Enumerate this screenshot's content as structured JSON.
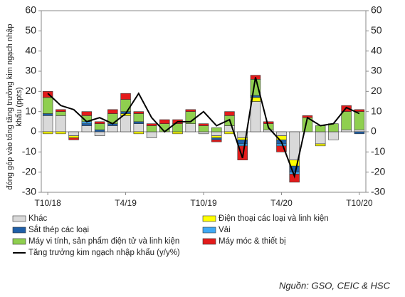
{
  "chart_data": {
    "type": "stacked_bar_line",
    "ylabel": [
      "đóng góp vào tổng tăng trưởng kim ngạch nhập",
      "khẩu (ppts)"
    ],
    "categories": [
      "T10/18",
      null,
      null,
      null,
      null,
      null,
      "T4/19",
      null,
      null,
      null,
      null,
      null,
      "T10/19",
      null,
      null,
      null,
      null,
      null,
      "T4/20",
      null,
      null,
      null,
      null,
      null,
      "T10/20"
    ],
    "series": [
      {
        "name": "Khác",
        "color": "#d9d9d9",
        "values": [
          8,
          8,
          -2,
          3,
          -2,
          3,
          8,
          4,
          -3,
          0,
          0,
          4,
          -1,
          -2,
          3,
          -3,
          15,
          1,
          -2,
          -14,
          0,
          -6,
          -4,
          1,
          1
        ]
      },
      {
        "name": "Điện thoại các loại và linh kiện",
        "color": "#ffff00",
        "values": [
          -1,
          -1,
          -1,
          0,
          0,
          0,
          1,
          -1,
          0,
          0,
          -1,
          0,
          0,
          -1,
          -1,
          -1,
          2,
          0,
          -2,
          -3,
          0,
          -1,
          0,
          0,
          0
        ]
      },
      {
        "name": "Sắt thép các loại",
        "color": "#1f5fa8",
        "values": [
          1,
          0,
          0,
          1,
          1,
          1,
          1,
          1,
          0,
          0,
          0,
          0,
          0,
          -1,
          0,
          -2,
          1,
          0,
          -2,
          -3,
          0,
          0,
          0,
          0,
          -1
        ]
      },
      {
        "name": "Vải",
        "color": "#3fa9f5",
        "values": [
          0,
          0,
          0,
          1,
          0,
          0,
          0,
          0,
          0,
          0,
          0,
          0,
          0,
          0,
          0,
          -1,
          0,
          0,
          -1,
          -1,
          0,
          0,
          0,
          0,
          0
        ]
      },
      {
        "name": "Máy vi tính, sản phẩm điện tử và linh kiện",
        "color": "#8fcf4f",
        "values": [
          8,
          2,
          0,
          3,
          3,
          5,
          6,
          4,
          3,
          4,
          4,
          6,
          3,
          2,
          5,
          0,
          8,
          3,
          0,
          0,
          7,
          3,
          4,
          9,
          9
        ]
      },
      {
        "name": "Máy móc & thiết bị",
        "color": "#e31b1b",
        "values": [
          3,
          1,
          -1,
          2,
          1,
          2,
          3,
          1,
          1,
          2,
          2,
          1,
          1,
          -1,
          2,
          -7,
          2,
          1,
          -3,
          -4,
          1,
          0,
          0,
          3,
          1
        ]
      }
    ],
    "line": {
      "name": "Tăng trưởng kim ngạch nhập khẩu (y/y%)",
      "color": "#000000",
      "values": [
        19,
        13,
        11,
        5,
        7,
        4,
        9,
        19,
        7,
        0,
        5,
        5,
        10,
        3,
        6,
        -13,
        27,
        2,
        -5,
        -22,
        7,
        3,
        4,
        12,
        9
      ]
    },
    "ylim": [
      -30,
      60
    ],
    "yticks": [
      -30,
      -20,
      -10,
      0,
      10,
      20,
      30,
      40,
      50,
      60
    ],
    "y2lim": [
      -30,
      60
    ],
    "y2ticks": [
      -30,
      -20,
      -10,
      0,
      10,
      20,
      30,
      40,
      50,
      60
    ],
    "source": "Nguồn: GSO, CEIC & HSC"
  }
}
